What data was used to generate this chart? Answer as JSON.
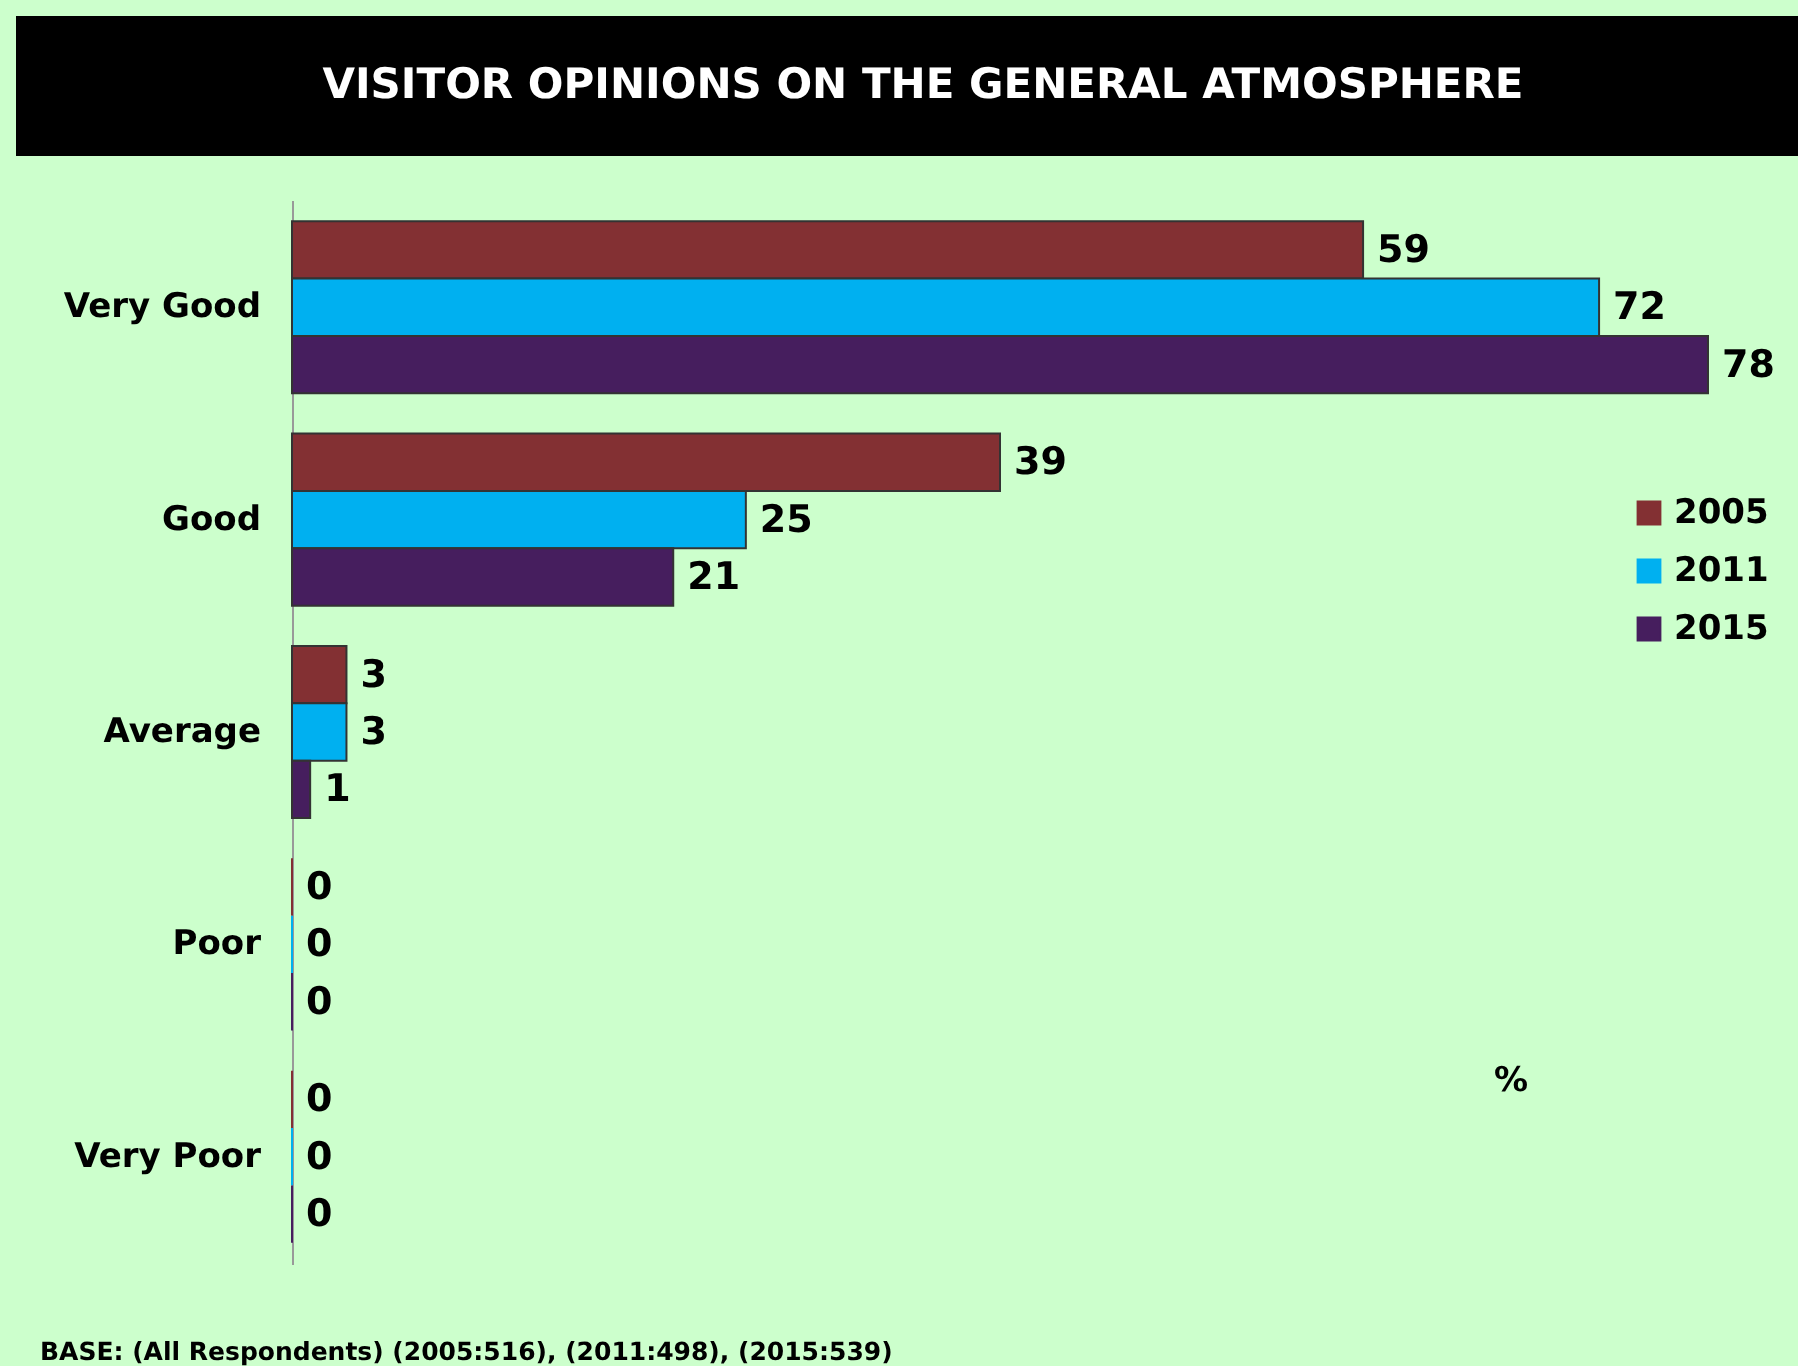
{
  "chart_data": {
    "type": "bar",
    "orientation": "horizontal",
    "title": "VISITOR OPINIONS ON THE GENERAL ATMOSPHERE",
    "xlabel": "%",
    "categories": [
      "Very Good",
      "Good",
      "Average",
      "Poor",
      "Very Poor"
    ],
    "series": [
      {
        "name": "2005",
        "color": "#833033",
        "values": [
          59,
          39,
          3,
          0,
          0
        ]
      },
      {
        "name": "2011",
        "color": "#00b0f0",
        "values": [
          72,
          25,
          3,
          0,
          0
        ]
      },
      {
        "name": "2015",
        "color": "#461e5e",
        "values": [
          78,
          21,
          1,
          0,
          0
        ]
      }
    ],
    "data_labels": true,
    "legend": "right",
    "tick_labels": "y",
    "annotations": [
      "BASE: (All Respondents) (2005:516), (2011:498), (2015:539)"
    ]
  }
}
